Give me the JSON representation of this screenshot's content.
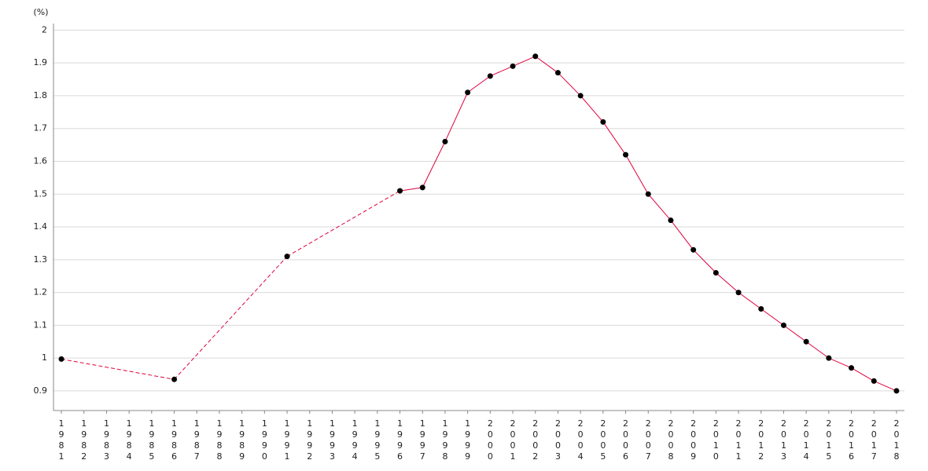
{
  "chart_data": {
    "type": "line",
    "y_label": "(%)",
    "x": [
      1981,
      1986,
      1991,
      1996,
      1997,
      1998,
      1999,
      2000,
      2001,
      2002,
      2003,
      2004,
      2005,
      2006,
      2007,
      2008,
      2009,
      2010,
      2011,
      2012,
      2013,
      2014,
      2015,
      2016,
      2017,
      2018
    ],
    "series": [
      {
        "color": "#e0003c",
        "values": [
          0.997,
          0.935,
          1.31,
          1.51,
          1.52,
          1.66,
          1.81,
          1.86,
          1.89,
          1.92,
          1.87,
          1.8,
          1.72,
          1.62,
          1.5,
          1.42,
          1.33,
          1.26,
          1.2,
          1.15,
          1.1,
          1.05,
          1.0,
          0.97,
          0.93,
          0.9
        ]
      }
    ],
    "xlim": [
      1980.65,
      2018.35
    ],
    "xticks": [
      1981,
      1982,
      1983,
      1984,
      1985,
      1986,
      1987,
      1988,
      1989,
      1990,
      1991,
      1992,
      1993,
      1994,
      1995,
      1996,
      1997,
      1998,
      1999,
      2000,
      2001,
      2002,
      2003,
      2004,
      2005,
      2006,
      2007,
      2008,
      2009,
      2010,
      2011,
      2012,
      2013,
      2014,
      2015,
      2016,
      2017,
      2018
    ],
    "ylim": [
      0.84,
      2.02
    ],
    "yticks": [
      0.9,
      1,
      1.1,
      1.2,
      1.3,
      1.4,
      1.5,
      1.6,
      1.7,
      1.8,
      1.9,
      2
    ],
    "grid": true,
    "marker_color": "#000000"
  }
}
